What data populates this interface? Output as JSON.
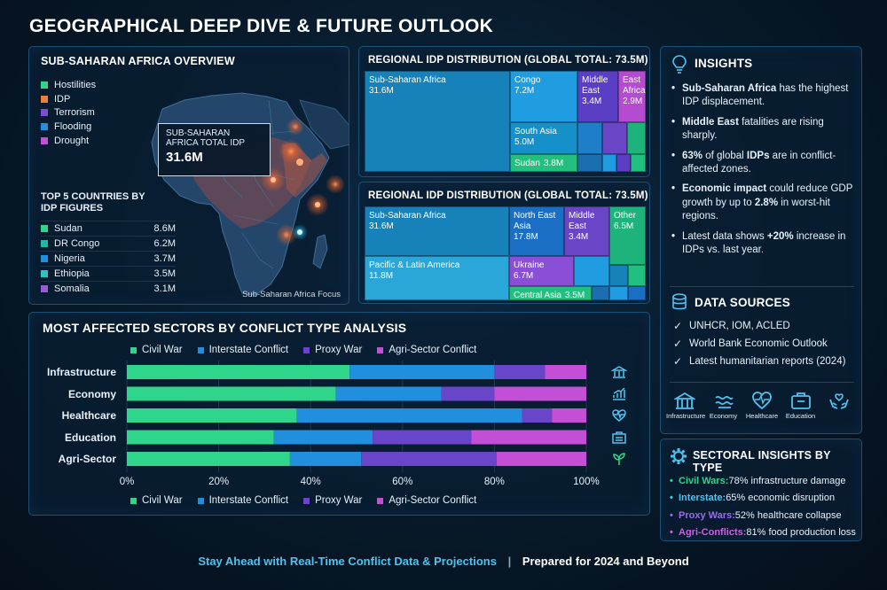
{
  "title": "GEOGRAPHICAL DEEP DIVE & FUTURE OUTLOOK",
  "colors": {
    "civil_war": "#2ed58a",
    "interstate": "#1f8fde",
    "proxy": "#6845c9",
    "agri": "#c24fd6",
    "hostilities": "#2ed58a",
    "idp": "#f07f36",
    "terrorism": "#7b4fd4",
    "flooding": "#1f8fde",
    "drought": "#c24fd6",
    "accent": "#4fc3f0"
  },
  "map": {
    "title": "SUB-SAHARAN AFRICA OVERVIEW",
    "legend": [
      {
        "label": "Hostilities",
        "color": "#2ed58a"
      },
      {
        "label": "IDP",
        "color": "#f07f36"
      },
      {
        "label": "Terrorism",
        "color": "#7b4fd4"
      },
      {
        "label": "Flooding",
        "color": "#1f8fde"
      },
      {
        "label": "Drought",
        "color": "#c24fd6"
      }
    ],
    "callout_label": "SUB-SAHARAN AFRICA TOTAL IDP",
    "callout_value": "31.6M",
    "top5_title": "TOP 5 COUNTRIES BY IDP FIGURES",
    "top5": [
      {
        "name": "Sudan",
        "value": "8.6M",
        "color": "#2ed58a"
      },
      {
        "name": "DR Congo",
        "value": "6.2M",
        "color": "#1fb8a0"
      },
      {
        "name": "Nigeria",
        "value": "3.7M",
        "color": "#1f8fde"
      },
      {
        "name": "Ethiopia",
        "value": "3.5M",
        "color": "#2ec4c4"
      },
      {
        "name": "Somalia",
        "value": "3.1M",
        "color": "#9a5ad8"
      }
    ],
    "caption": "Sub-Saharan Africa Focus"
  },
  "treemap1": {
    "title": "REGIONAL IDP DISTRIBUTION (GLOBAL TOTAL: 73.5M)",
    "cells": [
      {
        "name": "Sub-Saharan Africa",
        "value": "31.6M"
      },
      {
        "name": "Congo",
        "value": "7.2M"
      },
      {
        "name": "Middle East",
        "value": "3.4M"
      },
      {
        "name": "East Africa",
        "value": "2.9M"
      },
      {
        "name": "South Asia",
        "value": "5.0M"
      },
      {
        "name": "Sudan",
        "value": "3.8M"
      }
    ]
  },
  "treemap2": {
    "title": "REGIONAL IDP DISTRIBUTION (GLOBAL TOTAL: 73.5M)",
    "cells": [
      {
        "name": "Sub-Saharan Africa",
        "value": "31.6M"
      },
      {
        "name": "North East Asia",
        "value": "17.8M"
      },
      {
        "name": "Middle East",
        "value": "3.4M"
      },
      {
        "name": "Other",
        "value": "6.5M"
      },
      {
        "name": "Pacific & Latin America",
        "value": "11.8M"
      },
      {
        "name": "Ukraine",
        "value": "6.7M"
      },
      {
        "name": "Central Asia",
        "value": "3.5M"
      }
    ]
  },
  "insights": {
    "title": "INSIGHTS",
    "items": [
      {
        "bold": "Sub-Saharan Africa",
        "text": " has the highest IDP displacement."
      },
      {
        "bold": "Middle East",
        "text": " fatalities are rising sharply."
      },
      {
        "bold": "63%",
        "text": " of global ",
        "bold2": "IDPs",
        "text2": " are in conflict-affected zones."
      },
      {
        "bold": "Economic impact",
        "text": " could reduce GDP growth by up to ",
        "bold2": "2.8%",
        "text2": " in worst-hit regions."
      },
      {
        "bold": "",
        "text": "Latest data shows ",
        "bold2": "+20%",
        "text2": " increase in IDPs vs. last year."
      }
    ],
    "sources_title": "DATA SOURCES",
    "sources": [
      "UNHCR, IOM, ACLED",
      "World Bank Economic Outlook",
      "Latest humanitarian reports (2024)"
    ],
    "sector_icons": [
      {
        "label": "Infrastructure",
        "icon": "building-icon"
      },
      {
        "label": "Economy",
        "icon": "wave-icon"
      },
      {
        "label": "Healthcare",
        "icon": "heart-pulse-icon"
      },
      {
        "label": "Education",
        "icon": "briefcase-icon"
      },
      {
        "label": "",
        "icon": "hands-heart-icon"
      }
    ]
  },
  "sectoral": {
    "title": "SECTORAL INSIGHTS BY TYPE",
    "items": [
      {
        "label": "Civil Wars:",
        "text": " 78% infrastructure damage",
        "color": "#2ed58a"
      },
      {
        "label": "Interstate:",
        "text": " 65% economic disruption",
        "color": "#4fc3f0"
      },
      {
        "label": "Proxy Wars:",
        "text": " 52% healthcare collapse",
        "color": "#9a6cf0"
      },
      {
        "label": "Agri-Conflicts:",
        "text": " 81% food production loss",
        "color": "#d35be6"
      }
    ]
  },
  "chart_data": {
    "type": "bar",
    "orientation": "horizontal",
    "stacked": true,
    "title": "MOST AFFECTED SECTORS BY CONFLICT TYPE ANALYSIS",
    "categories": [
      "Infrastructure",
      "Economy",
      "Healthcare",
      "Education",
      "Agri-Sector"
    ],
    "series": [
      {
        "name": "Civil War",
        "values": [
          48.5,
          45.5,
          37,
          32,
          35.5
        ]
      },
      {
        "name": "Interstate Conflict",
        "values": [
          31.5,
          23,
          49,
          21.5,
          15.5
        ]
      },
      {
        "name": "Proxy War",
        "values": [
          11,
          11.5,
          6.5,
          21.5,
          29.5
        ]
      },
      {
        "name": "Agri-Sector Conflict",
        "values": [
          9,
          20,
          7.5,
          25,
          19.5
        ]
      }
    ],
    "xlim": [
      0,
      100
    ],
    "xticks": [
      "0%",
      "20%",
      "40%",
      "60%",
      "80%",
      "100%"
    ],
    "legend": "top and bottom"
  },
  "footer": {
    "left": "Stay Ahead with Real-Time Conflict Data & Projections",
    "right": "Prepared for 2024 and Beyond"
  }
}
